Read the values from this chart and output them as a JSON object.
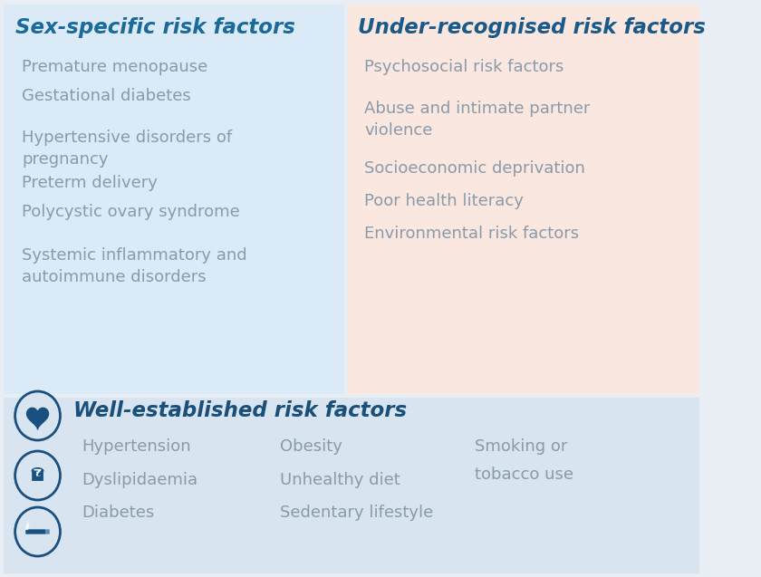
{
  "bg_color": "#e8eef4",
  "top_left_bg": "#daeaf6",
  "top_right_bg": "#fae8e0",
  "bottom_bg": "#d8e5f0",
  "title_color_left": "#1a6a9a",
  "title_color_right": "#1a5a8a",
  "text_color": "#8a9aaa",
  "bold_text_color": "#1a4f7a",
  "icon_color": "#1a5080",
  "left_title": "Sex-specific risk factors",
  "left_items": [
    "Premature menopause",
    "Gestational diabetes",
    "Hypertensive disorders of\npregnancy",
    "Preterm delivery",
    "Polycystic ovary syndrome",
    "Systemic inflammatory and\nautoimmune disorders"
  ],
  "right_title": "Under-recognised risk factors",
  "right_items": [
    "Psychosocial risk factors",
    "Abuse and intimate partner\nviolence",
    "Socioeconomic deprivation",
    "Poor health literacy",
    "Environmental risk factors"
  ],
  "bottom_title": "Well-established risk factors",
  "bottom_col1": [
    "Hypertension",
    "Dyslipidaemia",
    "Diabetes"
  ],
  "bottom_col2": [
    "Obesity",
    "Unhealthy diet",
    "Sedentary lifestyle"
  ],
  "bottom_col3": [
    "Smoking or\ntobacco use"
  ]
}
